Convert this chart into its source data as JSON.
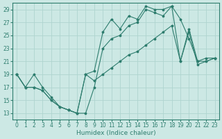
{
  "title": "",
  "xlabel": "Humidex (Indice chaleur)",
  "ylabel": "",
  "bg_color": "#cce8e4",
  "line_color": "#2e7d6e",
  "grid_color": "#afd4cf",
  "ylim": [
    12,
    30
  ],
  "xlim": [
    -0.5,
    23.5
  ],
  "yticks": [
    13,
    15,
    17,
    19,
    21,
    23,
    25,
    27,
    29
  ],
  "xticks": [
    0,
    1,
    2,
    3,
    4,
    5,
    6,
    7,
    8,
    9,
    10,
    11,
    12,
    13,
    14,
    15,
    16,
    17,
    18,
    19,
    20,
    21,
    22,
    23
  ],
  "series1_x": [
    0,
    1,
    2,
    3,
    4,
    5,
    6,
    7,
    8,
    9,
    10,
    11,
    12,
    13,
    14,
    15,
    16,
    17,
    18,
    19,
    20,
    21,
    22,
    23
  ],
  "series1_y": [
    19.0,
    17.0,
    17.0,
    16.5,
    15.0,
    14.0,
    13.5,
    13.0,
    19.0,
    18.0,
    19.0,
    20.0,
    21.0,
    22.0,
    22.5,
    23.5,
    24.5,
    25.5,
    26.5,
    21.0,
    26.0,
    21.0,
    21.5,
    21.5
  ],
  "series2_x": [
    0,
    1,
    2,
    3,
    4,
    5,
    6,
    7,
    8,
    9,
    10,
    11,
    12,
    13,
    14,
    15,
    16,
    17,
    18,
    19,
    20,
    21,
    22,
    23
  ],
  "series2_y": [
    19.0,
    17.0,
    17.0,
    16.5,
    15.0,
    14.0,
    13.5,
    13.0,
    19.0,
    19.5,
    25.5,
    27.5,
    26.0,
    28.0,
    27.5,
    29.5,
    29.0,
    29.0,
    29.5,
    27.5,
    24.5,
    21.0,
    21.0,
    21.5
  ],
  "series3_x": [
    0,
    1,
    2,
    3,
    4,
    5,
    6,
    7,
    8,
    9,
    10,
    11,
    12,
    13,
    14,
    15,
    16,
    17,
    18,
    19,
    20,
    21,
    22,
    23
  ],
  "series3_y": [
    19.0,
    17.0,
    19.0,
    17.0,
    15.5,
    14.0,
    13.5,
    13.0,
    13.0,
    17.0,
    23.0,
    24.5,
    25.0,
    26.5,
    27.0,
    29.0,
    28.5,
    28.0,
    29.5,
    21.0,
    25.5,
    20.5,
    21.0,
    21.5
  ]
}
